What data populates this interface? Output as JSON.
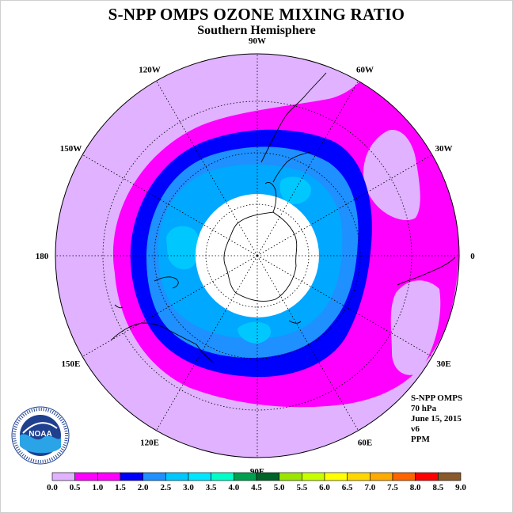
{
  "title": "S-NPP OMPS OZONE MIXING RATIO",
  "subtitle": "Southern Hemisphere",
  "info": {
    "instrument": "S-NPP OMPS",
    "level": "70 hPa",
    "date": "June 15, 2015",
    "version": "v6",
    "units": "PPM"
  },
  "longitude_labels": [
    "90W",
    "60W",
    "30W",
    "0",
    "30E",
    "60E",
    "90E",
    "120E",
    "150E",
    "180",
    "150W",
    "120W"
  ],
  "logo": {
    "text": "NOAA",
    "icon": "noaa-logo"
  },
  "colorbar": {
    "labels": [
      "0.0",
      "0.5",
      "1.0",
      "1.5",
      "2.0",
      "2.5",
      "3.0",
      "3.5",
      "4.0",
      "4.5",
      "5.0",
      "5.5",
      "6.0",
      "6.5",
      "7.0",
      "7.5",
      "8.0",
      "8.5",
      "9.0"
    ],
    "colors": [
      "#b987f5",
      "#e0b2ff",
      "#ff00ff",
      "#ff00ff",
      "#0000ff",
      "#1e90ff",
      "#00c8ff",
      "#00e6ff",
      "#00ffc8",
      "#00a050",
      "#006428",
      "#9be600",
      "#c8ff00",
      "#ffff00",
      "#ffd700",
      "#ffaa00",
      "#ff6400",
      "#ff0000",
      "#8b5a2b"
    ]
  },
  "colors": {
    "level_0_5": "#e0b2ff",
    "level_1_0": "#ff00ff",
    "level_1_5": "#0000ff",
    "level_2_0": "#1e90ff",
    "level_2_5": "#00c8ff",
    "level_3_0": "#00e6ff",
    "no_data": "#ffffff"
  }
}
